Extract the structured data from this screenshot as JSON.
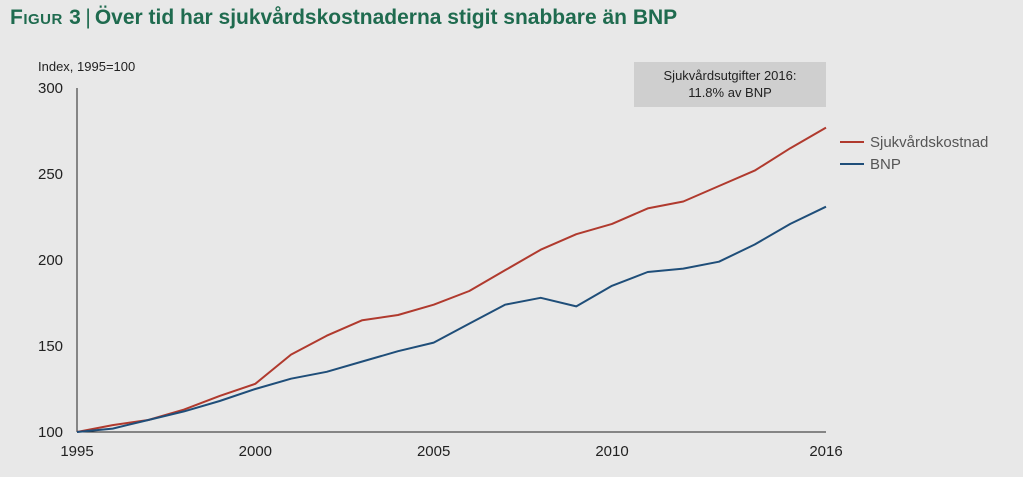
{
  "figure": {
    "label": "Figur 3",
    "separator": "|",
    "title": "Över tid har sjukvårdskostnaderna stigit snabbare än BNP"
  },
  "chart_data": {
    "type": "line",
    "title": "Över tid har sjukvårdskostnaderna stigit snabbare än BNP",
    "ylabel": "Index, 1995=100",
    "xlabel": "",
    "xlim": [
      1995,
      2016
    ],
    "ylim": [
      100,
      300
    ],
    "x_ticks": [
      1995,
      2000,
      2005,
      2010,
      2016
    ],
    "y_ticks": [
      100,
      150,
      200,
      250,
      300
    ],
    "grid": false,
    "legend_position": "right",
    "annotation": {
      "line1": "Sjukvårdsutgifter 2016:",
      "line2": "11.8% av BNP"
    },
    "x": [
      1995,
      1996,
      1997,
      1998,
      1999,
      2000,
      2001,
      2002,
      2003,
      2004,
      2005,
      2006,
      2007,
      2008,
      2009,
      2010,
      2011,
      2012,
      2013,
      2014,
      2015,
      2016
    ],
    "series": [
      {
        "name": "Sjukvårdskostnad",
        "color": "#b03a2e",
        "values": [
          100,
          104,
          107,
          113,
          121,
          128,
          145,
          156,
          165,
          168,
          174,
          182,
          194,
          206,
          215,
          221,
          230,
          234,
          243,
          252,
          265,
          277
        ]
      },
      {
        "name": "BNP",
        "color": "#1f4e79",
        "values": [
          100,
          102,
          107,
          112,
          118,
          125,
          131,
          135,
          141,
          147,
          152,
          163,
          174,
          178,
          173,
          185,
          193,
          195,
          199,
          209,
          221,
          231
        ]
      }
    ]
  }
}
